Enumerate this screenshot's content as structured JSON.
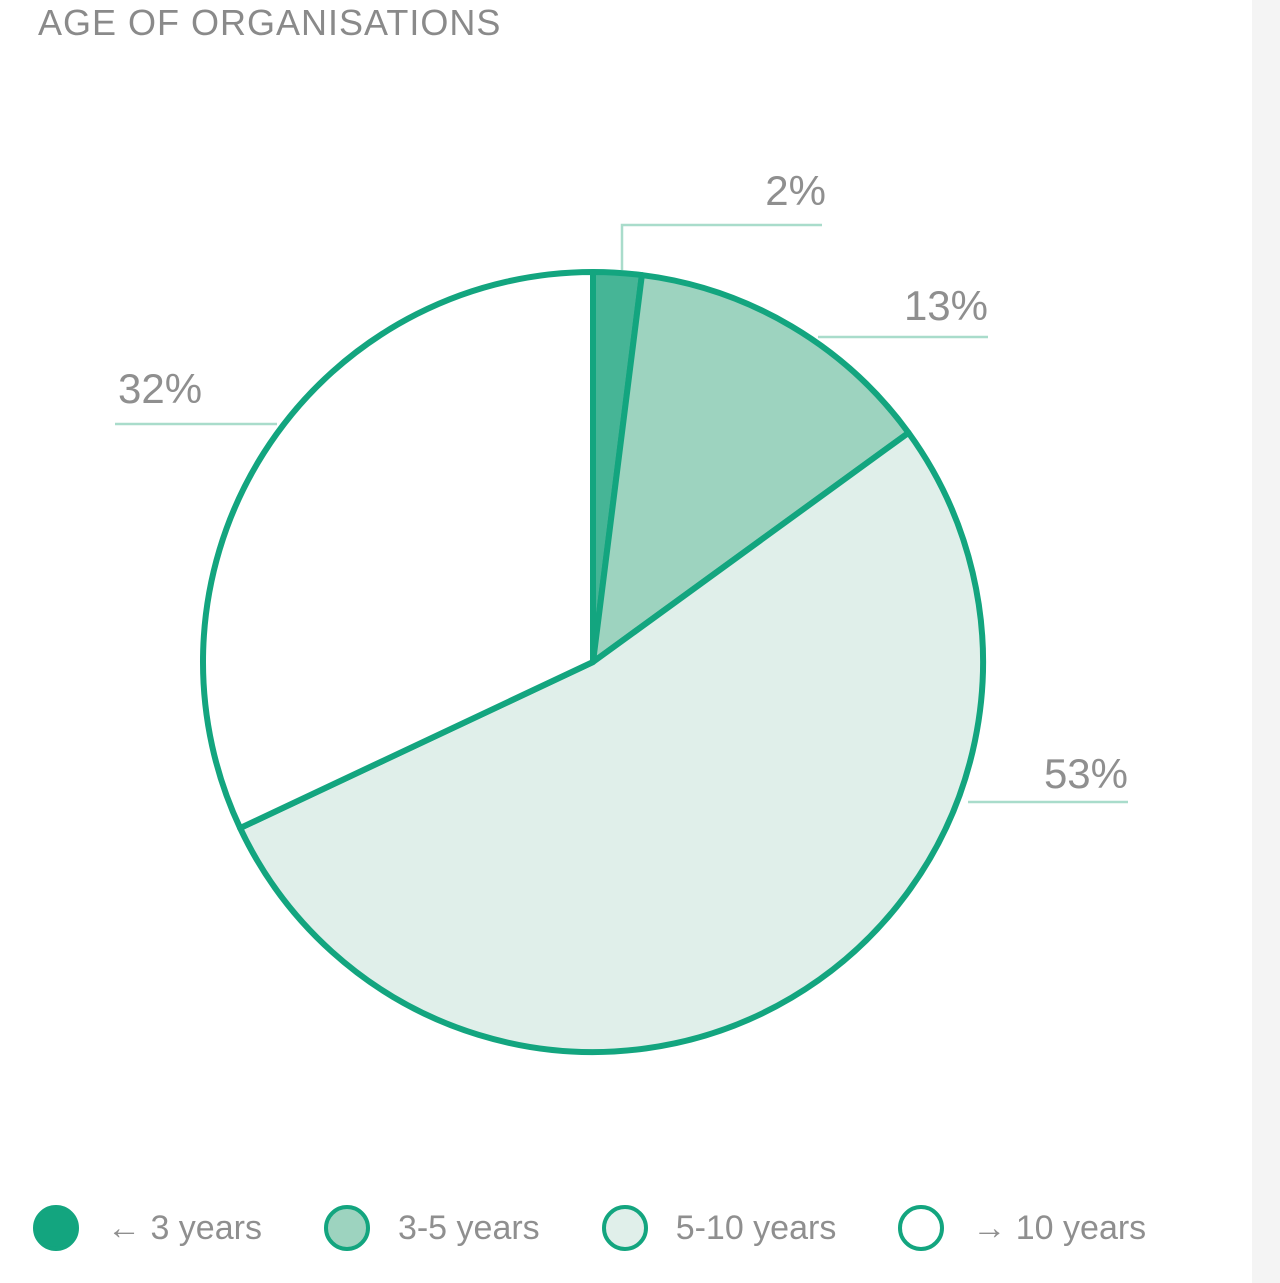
{
  "chart_data": {
    "type": "pie",
    "title": "AGE OF ORGANISATIONS",
    "categories": [
      "← 3 years",
      "3-5 years",
      "5-10 years",
      "→ 10 years"
    ],
    "values": [
      2,
      13,
      53,
      32
    ],
    "data_labels": [
      "2%",
      "13%",
      "53%",
      "32%"
    ],
    "colors": [
      "#46b596",
      "#9dd3bf",
      "#e0efea",
      "#ffffff"
    ],
    "outline_color": "#13a57f",
    "legend_swatch_colors": [
      "#13a57f",
      "#9dd3bf",
      "#e0efea",
      "#ffffff"
    ],
    "legend_position": "bottom",
    "start": "top, clockwise"
  }
}
